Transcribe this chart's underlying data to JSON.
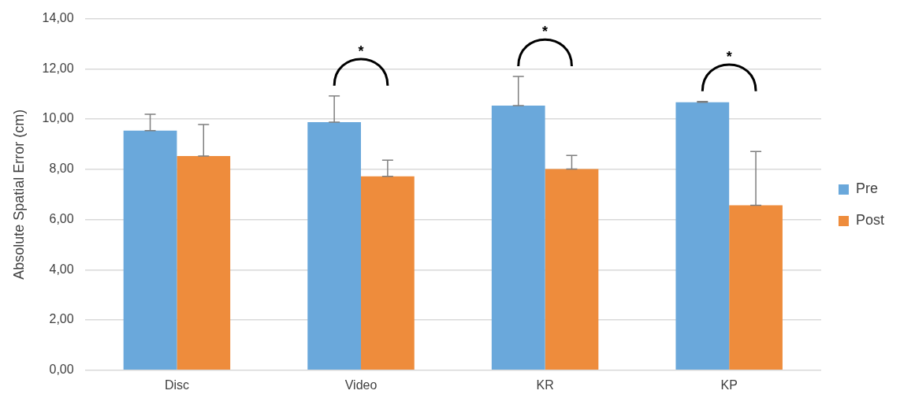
{
  "chart_data": {
    "type": "bar",
    "ylabel": "Absolute Spatial Error (cm)",
    "categories": [
      "Disc",
      "Video",
      "KR",
      "KP"
    ],
    "series": [
      {
        "name": "Pre",
        "color": "#6aa8db",
        "values": [
          9.54,
          9.88,
          10.54,
          10.67
        ],
        "errors": [
          [
            9.54,
            10.19
          ],
          [
            9.88,
            10.92
          ],
          [
            10.54,
            11.7
          ],
          [
            10.67,
            10.7
          ]
        ]
      },
      {
        "name": "Post",
        "color": "#ee8c3c",
        "values": [
          8.53,
          7.72,
          8.01,
          6.57
        ],
        "errors": [
          [
            8.53,
            9.78
          ],
          [
            7.72,
            8.36
          ],
          [
            8.01,
            8.55
          ],
          [
            6.57,
            8.71
          ]
        ]
      }
    ],
    "ylim": [
      0,
      14
    ],
    "yticks": [
      {
        "value": 0,
        "label": "0,00"
      },
      {
        "value": 2,
        "label": "2,00"
      },
      {
        "value": 4,
        "label": "4,00"
      },
      {
        "value": 6,
        "label": "6,00"
      },
      {
        "value": 8,
        "label": "8,00"
      },
      {
        "value": 10,
        "label": "10,00"
      },
      {
        "value": 12,
        "label": "12,00"
      },
      {
        "value": 14,
        "label": "14,00"
      }
    ],
    "grid": "y",
    "legend": "right",
    "annotations": [
      "*",
      "*",
      "*"
    ]
  }
}
